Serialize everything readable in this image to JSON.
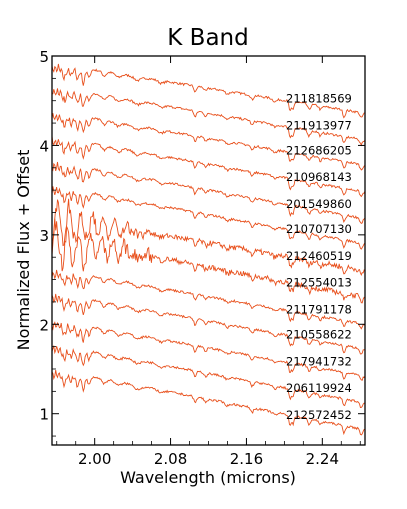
{
  "chart_data": {
    "type": "line",
    "title": "K Band",
    "xlabel": "Wavelength (microns)",
    "ylabel": "Normalized Flux + Offset",
    "xlim": [
      1.955,
      2.285
    ],
    "ylim": [
      0.65,
      5.0
    ],
    "x_ticks": [
      2.0,
      2.08,
      2.16,
      2.24
    ],
    "x_tick_labels": [
      "2.00",
      "2.08",
      "2.16",
      "2.24"
    ],
    "y_ticks": [
      1,
      2,
      3,
      4,
      5
    ],
    "y_tick_labels": [
      "1",
      "2",
      "3",
      "4",
      "5"
    ],
    "line_color": "#e8501c",
    "grid": false,
    "legend": "none",
    "series": [
      {
        "name": "211818569",
        "start": 4.92,
        "end": 4.36
      },
      {
        "name": "211913977",
        "start": 4.66,
        "end": 4.06
      },
      {
        "name": "212686205",
        "start": 4.38,
        "end": 3.78
      },
      {
        "name": "210968143",
        "start": 4.1,
        "end": 3.48
      },
      {
        "name": "201549860",
        "start": 3.82,
        "end": 3.18
      },
      {
        "name": "210707130",
        "start": 3.55,
        "end": 2.9
      },
      {
        "name": "212460519",
        "start": 3.22,
        "end": 2.6
      },
      {
        "name": "212554013",
        "start": 2.98,
        "end": 2.3
      },
      {
        "name": "211791178",
        "start": 2.62,
        "end": 2.0
      },
      {
        "name": "210558622",
        "start": 2.35,
        "end": 1.72
      },
      {
        "name": "217941732",
        "start": 2.05,
        "end": 1.42
      },
      {
        "name": "206119924",
        "start": 1.78,
        "end": 1.12
      },
      {
        "name": "212572452",
        "start": 1.5,
        "end": 0.82
      }
    ]
  }
}
